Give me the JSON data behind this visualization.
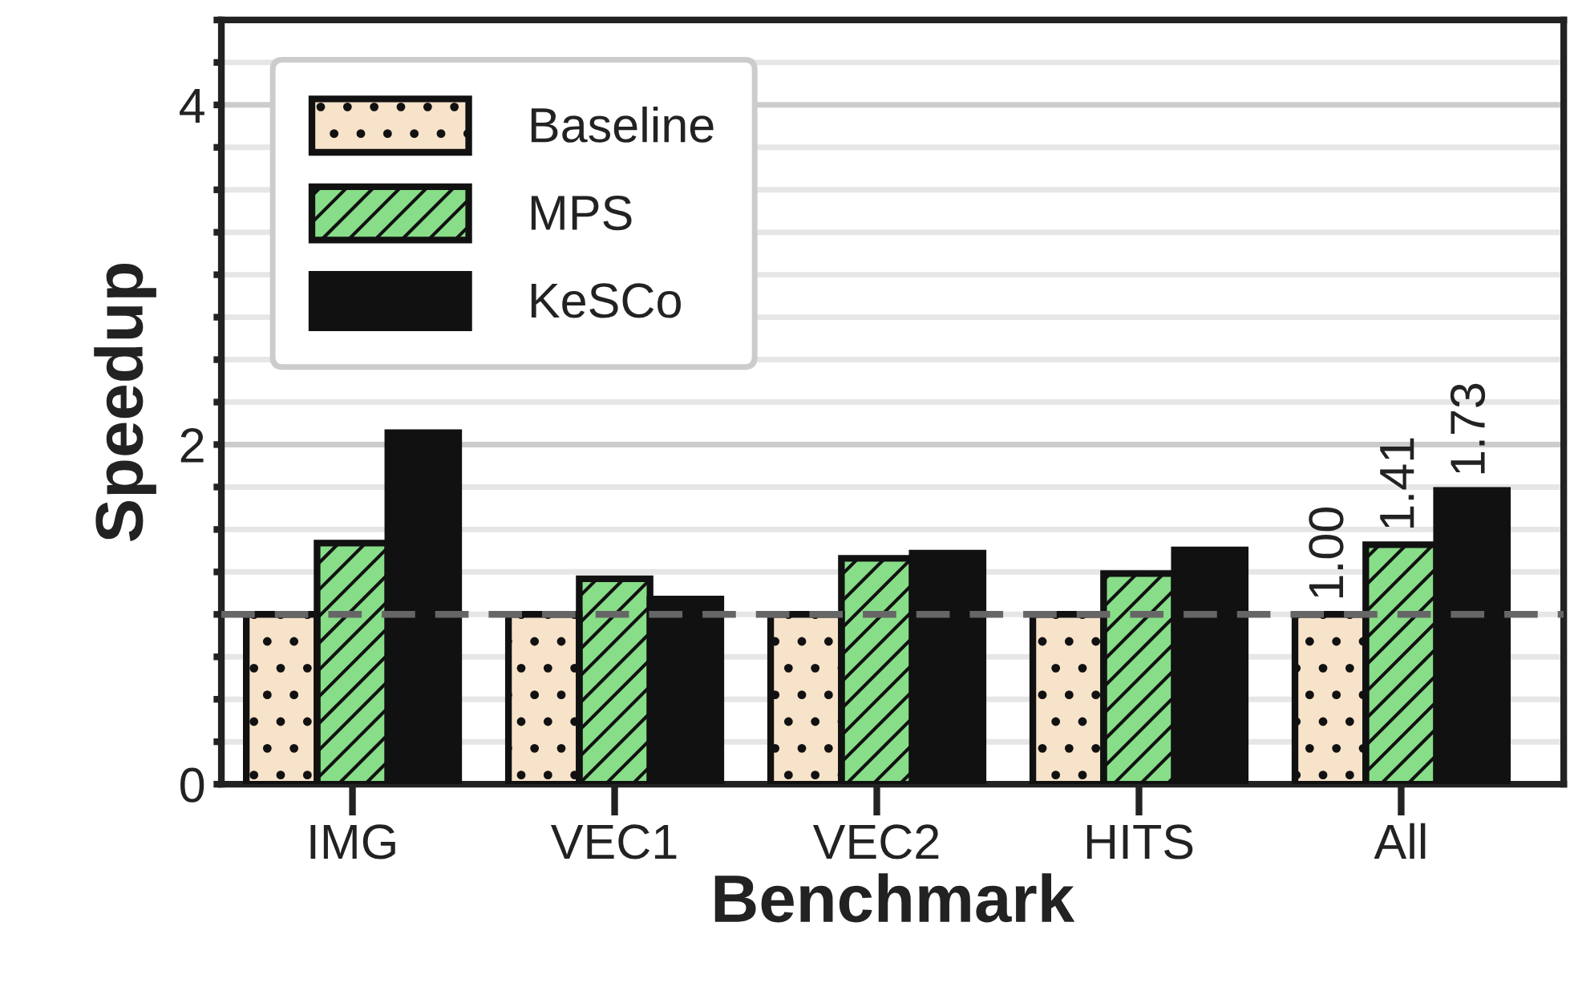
{
  "chart_data": {
    "type": "bar",
    "xlabel": "Benchmark",
    "ylabel": "Speedup",
    "categories": [
      "IMG",
      "VEC1",
      "VEC2",
      "HITS",
      "All"
    ],
    "series": [
      {
        "name": "Baseline",
        "color": "#f7e2ca",
        "values": [
          1.0,
          1.0,
          1.0,
          1.0,
          1.0
        ],
        "value_labels": [
          null,
          null,
          null,
          null,
          "1.00"
        ]
      },
      {
        "name": "MPS",
        "color": "#88dd88",
        "values": [
          1.42,
          1.21,
          1.33,
          1.24,
          1.41
        ],
        "value_labels": [
          null,
          null,
          null,
          null,
          "1.41"
        ]
      },
      {
        "name": "KeSCo",
        "color": "#111111",
        "values": [
          2.07,
          1.09,
          1.36,
          1.38,
          1.73
        ],
        "value_labels": [
          null,
          null,
          null,
          null,
          "1.73"
        ]
      }
    ],
    "ylim": [
      0,
      4.5
    ],
    "yticks": [
      0,
      {
        "value": 0.25,
        "label": null
      },
      {
        "value": 0.5,
        "label": null
      },
      {
        "value": 0.75,
        "label": null
      },
      {
        "value": 1.0,
        "label": null
      },
      {
        "value": 1.25,
        "label": null
      },
      {
        "value": 1.5,
        "label": null
      },
      {
        "value": 1.75,
        "label": null
      },
      2,
      {
        "value": 2.25,
        "label": null
      },
      {
        "value": 2.5,
        "label": null
      },
      {
        "value": 2.75,
        "label": null
      },
      {
        "value": 3.0,
        "label": null
      },
      {
        "value": 3.25,
        "label": null
      },
      {
        "value": 3.5,
        "label": null
      },
      {
        "value": 3.75,
        "label": null
      },
      4,
      {
        "value": 4.25,
        "label": null
      },
      {
        "value": 4.5,
        "label": null
      }
    ],
    "ref_lines": [
      {
        "axis": "y",
        "value": 1,
        "label": null,
        "color": "#666666",
        "line_style": "dashed"
      }
    ],
    "grid": "y",
    "legend": "top left"
  }
}
